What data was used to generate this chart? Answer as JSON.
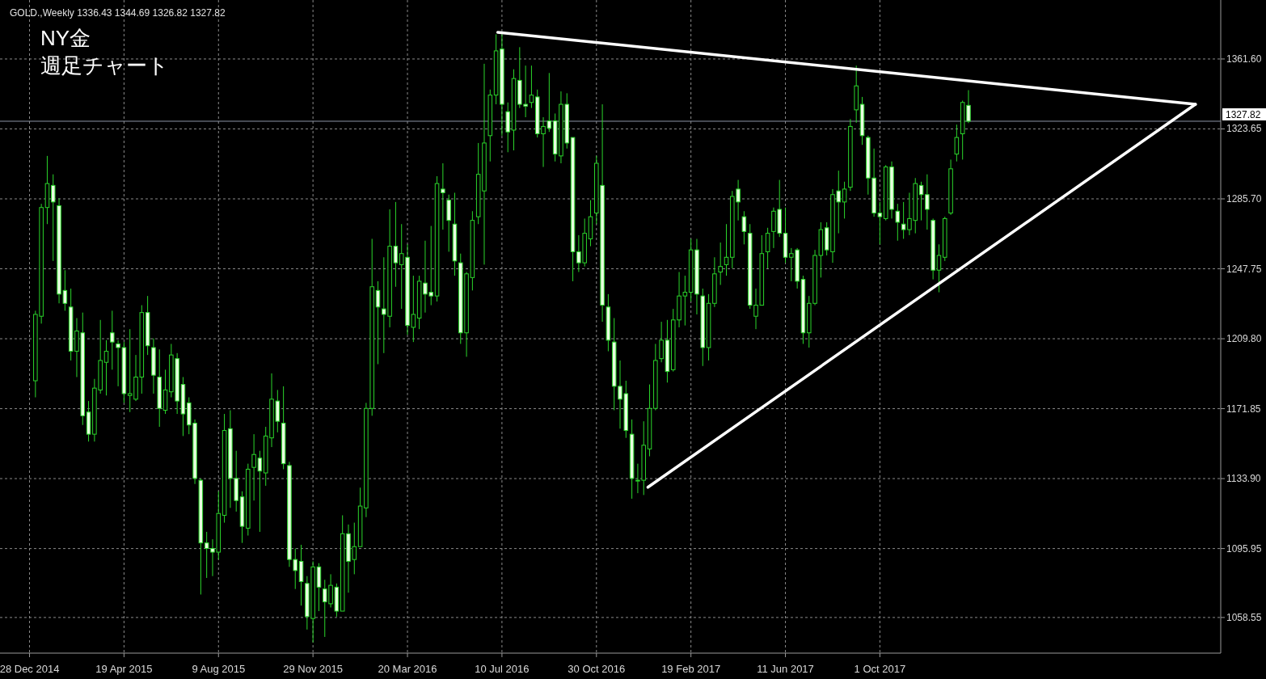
{
  "chart_data": {
    "type": "candlestick",
    "title": "NY金",
    "subtitle": "週足チャート",
    "annotations": [
      "GOLD.,Weekly  1336.43 1344.69 1326.82 1327.82"
    ],
    "color": "#2bd62b",
    "grid": true,
    "xlim": [
      "2014-11-23",
      "2018-11-09"
    ],
    "xticks": [
      {
        "value": "2014-12-28",
        "label": "28 Dec 2014"
      },
      {
        "value": "2015-04-19",
        "label": "19 Apr 2015"
      },
      {
        "value": "2015-08-09",
        "label": "9 Aug 2015"
      },
      {
        "value": "2015-11-29",
        "label": "29 Nov 2015"
      },
      {
        "value": "2016-03-20",
        "label": "20 Mar 2016"
      },
      {
        "value": "2016-07-10",
        "label": "10 Jul 2016"
      },
      {
        "value": "2016-10-30",
        "label": "30 Oct 2016"
      },
      {
        "value": "2017-02-19",
        "label": "19 Feb 2017"
      },
      {
        "value": "2017-06-11",
        "label": "11 Jun 2017"
      },
      {
        "value": "2017-10-01",
        "label": "1 Oct 2017"
      }
    ],
    "ylim": [
      1039.2,
      1393.6
    ],
    "yticks": [
      1058.55,
      1095.95,
      {
        "value": 1133.9,
        "label": "1133.90"
      },
      1171.85,
      {
        "value": 1209.8,
        "label": "1209.80"
      },
      1247.75,
      {
        "value": 1285.7,
        "label": "1285.70"
      },
      1323.65,
      {
        "value": 1361.6,
        "label": "1361.60"
      }
    ],
    "ref_lines": [
      {
        "axis": "y",
        "value": 1327.82,
        "label": "1327.82",
        "color": "#8c96a6"
      }
    ],
    "x": [
      "2015-01-04",
      "2015-01-11",
      "2015-01-18",
      "2015-01-25",
      "2015-02-01",
      "2015-02-08",
      "2015-02-15",
      "2015-02-22",
      "2015-03-01",
      "2015-03-08",
      "2015-03-15",
      "2015-03-22",
      "2015-03-29",
      "2015-04-05",
      "2015-04-12",
      "2015-04-19",
      "2015-04-26",
      "2015-05-03",
      "2015-05-10",
      "2015-05-17",
      "2015-05-24",
      "2015-05-31",
      "2015-06-07",
      "2015-06-14",
      "2015-06-21",
      "2015-06-28",
      "2015-07-05",
      "2015-07-12",
      "2015-07-19",
      "2015-07-26",
      "2015-08-02",
      "2015-08-09",
      "2015-08-16",
      "2015-08-23",
      "2015-08-30",
      "2015-09-06",
      "2015-09-13",
      "2015-09-20",
      "2015-09-27",
      "2015-10-04",
      "2015-10-11",
      "2015-10-18",
      "2015-10-25",
      "2015-11-01",
      "2015-11-08",
      "2015-11-15",
      "2015-11-22",
      "2015-11-29",
      "2015-12-06",
      "2015-12-13",
      "2015-12-20",
      "2015-12-27",
      "2016-01-03",
      "2016-01-10",
      "2016-01-17",
      "2016-01-24",
      "2016-01-31",
      "2016-02-07",
      "2016-02-14",
      "2016-02-21",
      "2016-02-28",
      "2016-03-06",
      "2016-03-13",
      "2016-03-20",
      "2016-03-27",
      "2016-04-03",
      "2016-04-10",
      "2016-04-17",
      "2016-04-24",
      "2016-05-01",
      "2016-05-08",
      "2016-05-15",
      "2016-05-22",
      "2016-05-29",
      "2016-06-05",
      "2016-06-12",
      "2016-06-19",
      "2016-06-26",
      "2016-07-03",
      "2016-07-10",
      "2016-07-17",
      "2016-07-24",
      "2016-07-31",
      "2016-08-07",
      "2016-08-14",
      "2016-08-21",
      "2016-08-28",
      "2016-09-04",
      "2016-09-11",
      "2016-09-18",
      "2016-09-25",
      "2016-10-02",
      "2016-10-09",
      "2016-10-16",
      "2016-10-23",
      "2016-10-30",
      "2016-11-06",
      "2016-11-13",
      "2016-11-20",
      "2016-11-27",
      "2016-12-04",
      "2016-12-11",
      "2016-12-18",
      "2016-12-25",
      "2017-01-01",
      "2017-01-08",
      "2017-01-15",
      "2017-01-22",
      "2017-01-29",
      "2017-02-05",
      "2017-02-12",
      "2017-02-19",
      "2017-02-26",
      "2017-03-05",
      "2017-03-12",
      "2017-03-19",
      "2017-03-26",
      "2017-04-02",
      "2017-04-09",
      "2017-04-16",
      "2017-04-23",
      "2017-04-30",
      "2017-05-07",
      "2017-05-14",
      "2017-05-21",
      "2017-05-28",
      "2017-06-04",
      "2017-06-11",
      "2017-06-18",
      "2017-06-25",
      "2017-07-02",
      "2017-07-09",
      "2017-07-16",
      "2017-07-23",
      "2017-07-30",
      "2017-08-06",
      "2017-08-13",
      "2017-08-20",
      "2017-08-27",
      "2017-09-03",
      "2017-09-10",
      "2017-09-17",
      "2017-09-24",
      "2017-10-01",
      "2017-10-08",
      "2017-10-15",
      "2017-10-22",
      "2017-10-29",
      "2017-11-05",
      "2017-11-12",
      "2017-11-19",
      "2017-11-26",
      "2017-12-03",
      "2017-12-10",
      "2017-12-17",
      "2017-12-24",
      "2017-12-31",
      "2018-01-07",
      "2018-01-14"
    ],
    "ohlc": [
      [
        1187,
        1225,
        1178,
        1223
      ],
      [
        1222,
        1283,
        1218,
        1281
      ],
      [
        1281,
        1309,
        1272,
        1294
      ],
      [
        1293,
        1299,
        1252,
        1284
      ],
      [
        1282,
        1286,
        1229,
        1234
      ],
      [
        1236,
        1247,
        1225,
        1229
      ],
      [
        1227,
        1237,
        1198,
        1203
      ],
      [
        1203,
        1221,
        1189,
        1214
      ],
      [
        1213,
        1224,
        1163,
        1168
      ],
      [
        1170,
        1176,
        1154,
        1158
      ],
      [
        1158,
        1188,
        1154,
        1183
      ],
      [
        1182,
        1220,
        1180,
        1198
      ],
      [
        1197,
        1209,
        1179,
        1203
      ],
      [
        1213,
        1225,
        1193,
        1208
      ],
      [
        1207,
        1209,
        1184,
        1205
      ],
      [
        1205,
        1208,
        1175,
        1180
      ],
      [
        1179,
        1215,
        1170,
        1180
      ],
      [
        1177,
        1201,
        1176,
        1189
      ],
      [
        1189,
        1228,
        1180,
        1224
      ],
      [
        1224,
        1233,
        1201,
        1206
      ],
      [
        1205,
        1210,
        1180,
        1190
      ],
      [
        1189,
        1204,
        1162,
        1172
      ],
      [
        1171,
        1193,
        1169,
        1182
      ],
      [
        1181,
        1207,
        1178,
        1201
      ],
      [
        1199,
        1202,
        1169,
        1176
      ],
      [
        1185,
        1189,
        1157,
        1169
      ],
      [
        1175,
        1178,
        1158,
        1163
      ],
      [
        1164,
        1166,
        1131,
        1134
      ],
      [
        1133,
        1134,
        1071,
        1099
      ],
      [
        1099,
        1105,
        1080,
        1096
      ],
      [
        1096,
        1101,
        1081,
        1094
      ],
      [
        1094,
        1127,
        1090,
        1115
      ],
      [
        1114,
        1169,
        1110,
        1160
      ],
      [
        1161,
        1171,
        1118,
        1134
      ],
      [
        1134,
        1149,
        1116,
        1122
      ],
      [
        1124,
        1127,
        1099,
        1108
      ],
      [
        1107,
        1142,
        1103,
        1139
      ],
      [
        1140,
        1158,
        1122,
        1147
      ],
      [
        1145,
        1149,
        1105,
        1138
      ],
      [
        1137,
        1162,
        1130,
        1157
      ],
      [
        1156,
        1191,
        1151,
        1177
      ],
      [
        1176,
        1182,
        1159,
        1165
      ],
      [
        1164,
        1184,
        1139,
        1142
      ],
      [
        1141,
        1143,
        1086,
        1090
      ],
      [
        1090,
        1096,
        1074,
        1084
      ],
      [
        1089,
        1098,
        1065,
        1078
      ],
      [
        1077,
        1081,
        1052,
        1059
      ],
      [
        1058,
        1089,
        1045,
        1086
      ],
      [
        1086,
        1088,
        1062,
        1075
      ],
      [
        1074,
        1079,
        1048,
        1067
      ],
      [
        1066,
        1082,
        1064,
        1076
      ],
      [
        1075,
        1077,
        1059,
        1062
      ],
      [
        1062,
        1114,
        1062,
        1104
      ],
      [
        1104,
        1109,
        1072,
        1089
      ],
      [
        1090,
        1110,
        1082,
        1097
      ],
      [
        1097,
        1129,
        1097,
        1119
      ],
      [
        1118,
        1175,
        1113,
        1172
      ],
      [
        1172,
        1264,
        1168,
        1238
      ],
      [
        1236,
        1241,
        1196,
        1227
      ],
      [
        1226,
        1254,
        1202,
        1223
      ],
      [
        1222,
        1280,
        1216,
        1260
      ],
      [
        1260,
        1284,
        1238,
        1251
      ],
      [
        1250,
        1272,
        1226,
        1256
      ],
      [
        1254,
        1261,
        1212,
        1217
      ],
      [
        1216,
        1244,
        1208,
        1223
      ],
      [
        1221,
        1244,
        1215,
        1241
      ],
      [
        1240,
        1263,
        1224,
        1234
      ],
      [
        1235,
        1271,
        1228,
        1233
      ],
      [
        1233,
        1298,
        1230,
        1294
      ],
      [
        1291,
        1305,
        1269,
        1289
      ],
      [
        1285,
        1288,
        1257,
        1274
      ],
      [
        1272,
        1289,
        1244,
        1252
      ],
      [
        1251,
        1256,
        1207,
        1213
      ],
      [
        1213,
        1246,
        1200,
        1245
      ],
      [
        1243,
        1279,
        1236,
        1274
      ],
      [
        1276,
        1316,
        1272,
        1299
      ],
      [
        1290,
        1359,
        1250,
        1316
      ],
      [
        1320,
        1345,
        1306,
        1342
      ],
      [
        1342,
        1375,
        1337,
        1366
      ],
      [
        1367,
        1375,
        1320,
        1337
      ],
      [
        1333,
        1338,
        1311,
        1322
      ],
      [
        1323,
        1356,
        1312,
        1351
      ],
      [
        1350,
        1368,
        1335,
        1337
      ],
      [
        1337,
        1358,
        1330,
        1336
      ],
      [
        1338,
        1358,
        1335,
        1342
      ],
      [
        1341,
        1345,
        1319,
        1321
      ],
      [
        1321,
        1330,
        1303,
        1325
      ],
      [
        1328,
        1354,
        1322,
        1324
      ],
      [
        1328,
        1332,
        1306,
        1310
      ],
      [
        1309,
        1344,
        1305,
        1337
      ],
      [
        1337,
        1343,
        1313,
        1316
      ],
      [
        1319,
        1319,
        1241,
        1257
      ],
      [
        1257,
        1266,
        1246,
        1251
      ],
      [
        1251,
        1275,
        1249,
        1267
      ],
      [
        1264,
        1285,
        1260,
        1276
      ],
      [
        1278,
        1309,
        1272,
        1305
      ],
      [
        1293,
        1337,
        1219,
        1228
      ],
      [
        1227,
        1234,
        1203,
        1209
      ],
      [
        1208,
        1221,
        1171,
        1184
      ],
      [
        1184,
        1198,
        1161,
        1177
      ],
      [
        1180,
        1187,
        1156,
        1160
      ],
      [
        1158,
        1166,
        1123,
        1134
      ],
      [
        1133,
        1142,
        1126,
        1133
      ],
      [
        1133,
        1165,
        1125,
        1152
      ],
      [
        1150,
        1185,
        1146,
        1172
      ],
      [
        1172,
        1207,
        1171,
        1198
      ],
      [
        1199,
        1219,
        1197,
        1209
      ],
      [
        1209,
        1220,
        1186,
        1192
      ],
      [
        1193,
        1226,
        1192,
        1220
      ],
      [
        1220,
        1246,
        1216,
        1233
      ],
      [
        1233,
        1244,
        1217,
        1235
      ],
      [
        1235,
        1264,
        1230,
        1258
      ],
      [
        1258,
        1264,
        1223,
        1234
      ],
      [
        1233,
        1237,
        1195,
        1205
      ],
      [
        1205,
        1234,
        1198,
        1229
      ],
      [
        1229,
        1254,
        1227,
        1245
      ],
      [
        1246,
        1262,
        1239,
        1249
      ],
      [
        1250,
        1272,
        1244,
        1254
      ],
      [
        1254,
        1290,
        1248,
        1287
      ],
      [
        1291,
        1296,
        1274,
        1284
      ],
      [
        1276,
        1279,
        1261,
        1268
      ],
      [
        1267,
        1272,
        1226,
        1228
      ],
      [
        1222,
        1237,
        1215,
        1228
      ],
      [
        1228,
        1266,
        1228,
        1256
      ],
      [
        1257,
        1270,
        1248,
        1267
      ],
      [
        1268,
        1281,
        1259,
        1279
      ],
      [
        1280,
        1296,
        1265,
        1267
      ],
      [
        1267,
        1281,
        1251,
        1254
      ],
      [
        1254,
        1259,
        1241,
        1256
      ],
      [
        1258,
        1259,
        1237,
        1241
      ],
      [
        1242,
        1244,
        1207,
        1213
      ],
      [
        1213,
        1233,
        1205,
        1229
      ],
      [
        1229,
        1258,
        1228,
        1255
      ],
      [
        1255,
        1273,
        1243,
        1269
      ],
      [
        1270,
        1273,
        1255,
        1258
      ],
      [
        1257,
        1291,
        1251,
        1288
      ],
      [
        1290,
        1301,
        1267,
        1284
      ],
      [
        1284,
        1295,
        1275,
        1291
      ],
      [
        1292,
        1329,
        1290,
        1325
      ],
      [
        1334,
        1358,
        1327,
        1347
      ],
      [
        1337,
        1341,
        1315,
        1320
      ],
      [
        1319,
        1320,
        1288,
        1297
      ],
      [
        1297,
        1313,
        1276,
        1278
      ],
      [
        1278,
        1284,
        1261,
        1276
      ],
      [
        1275,
        1304,
        1274,
        1303
      ],
      [
        1303,
        1306,
        1275,
        1280
      ],
      [
        1279,
        1283,
        1263,
        1273
      ],
      [
        1272,
        1284,
        1264,
        1269
      ],
      [
        1269,
        1289,
        1266,
        1275
      ],
      [
        1274,
        1297,
        1267,
        1294
      ],
      [
        1293,
        1295,
        1274,
        1288
      ],
      [
        1288,
        1299,
        1269,
        1280
      ],
      [
        1274,
        1275,
        1242,
        1247
      ],
      [
        1247,
        1261,
        1235,
        1255
      ],
      [
        1254,
        1276,
        1252,
        1275
      ],
      [
        1278,
        1307,
        1277,
        1302
      ],
      [
        1310,
        1326,
        1306,
        1319
      ],
      [
        1321,
        1339,
        1307,
        1338
      ],
      [
        1336.43,
        1344.69,
        1326.82,
        1327.82
      ]
    ],
    "series": [
      {
        "type": "line",
        "color": "#ffffff",
        "x": [
          "2016-07-05",
          "2018-10-10"
        ],
        "values": [
          1376.1,
          1337.0
        ]
      },
      {
        "type": "line",
        "color": "#ffffff",
        "x": [
          "2016-12-30",
          "2018-10-10"
        ],
        "values": [
          1129.2,
          1337.0
        ]
      }
    ]
  }
}
